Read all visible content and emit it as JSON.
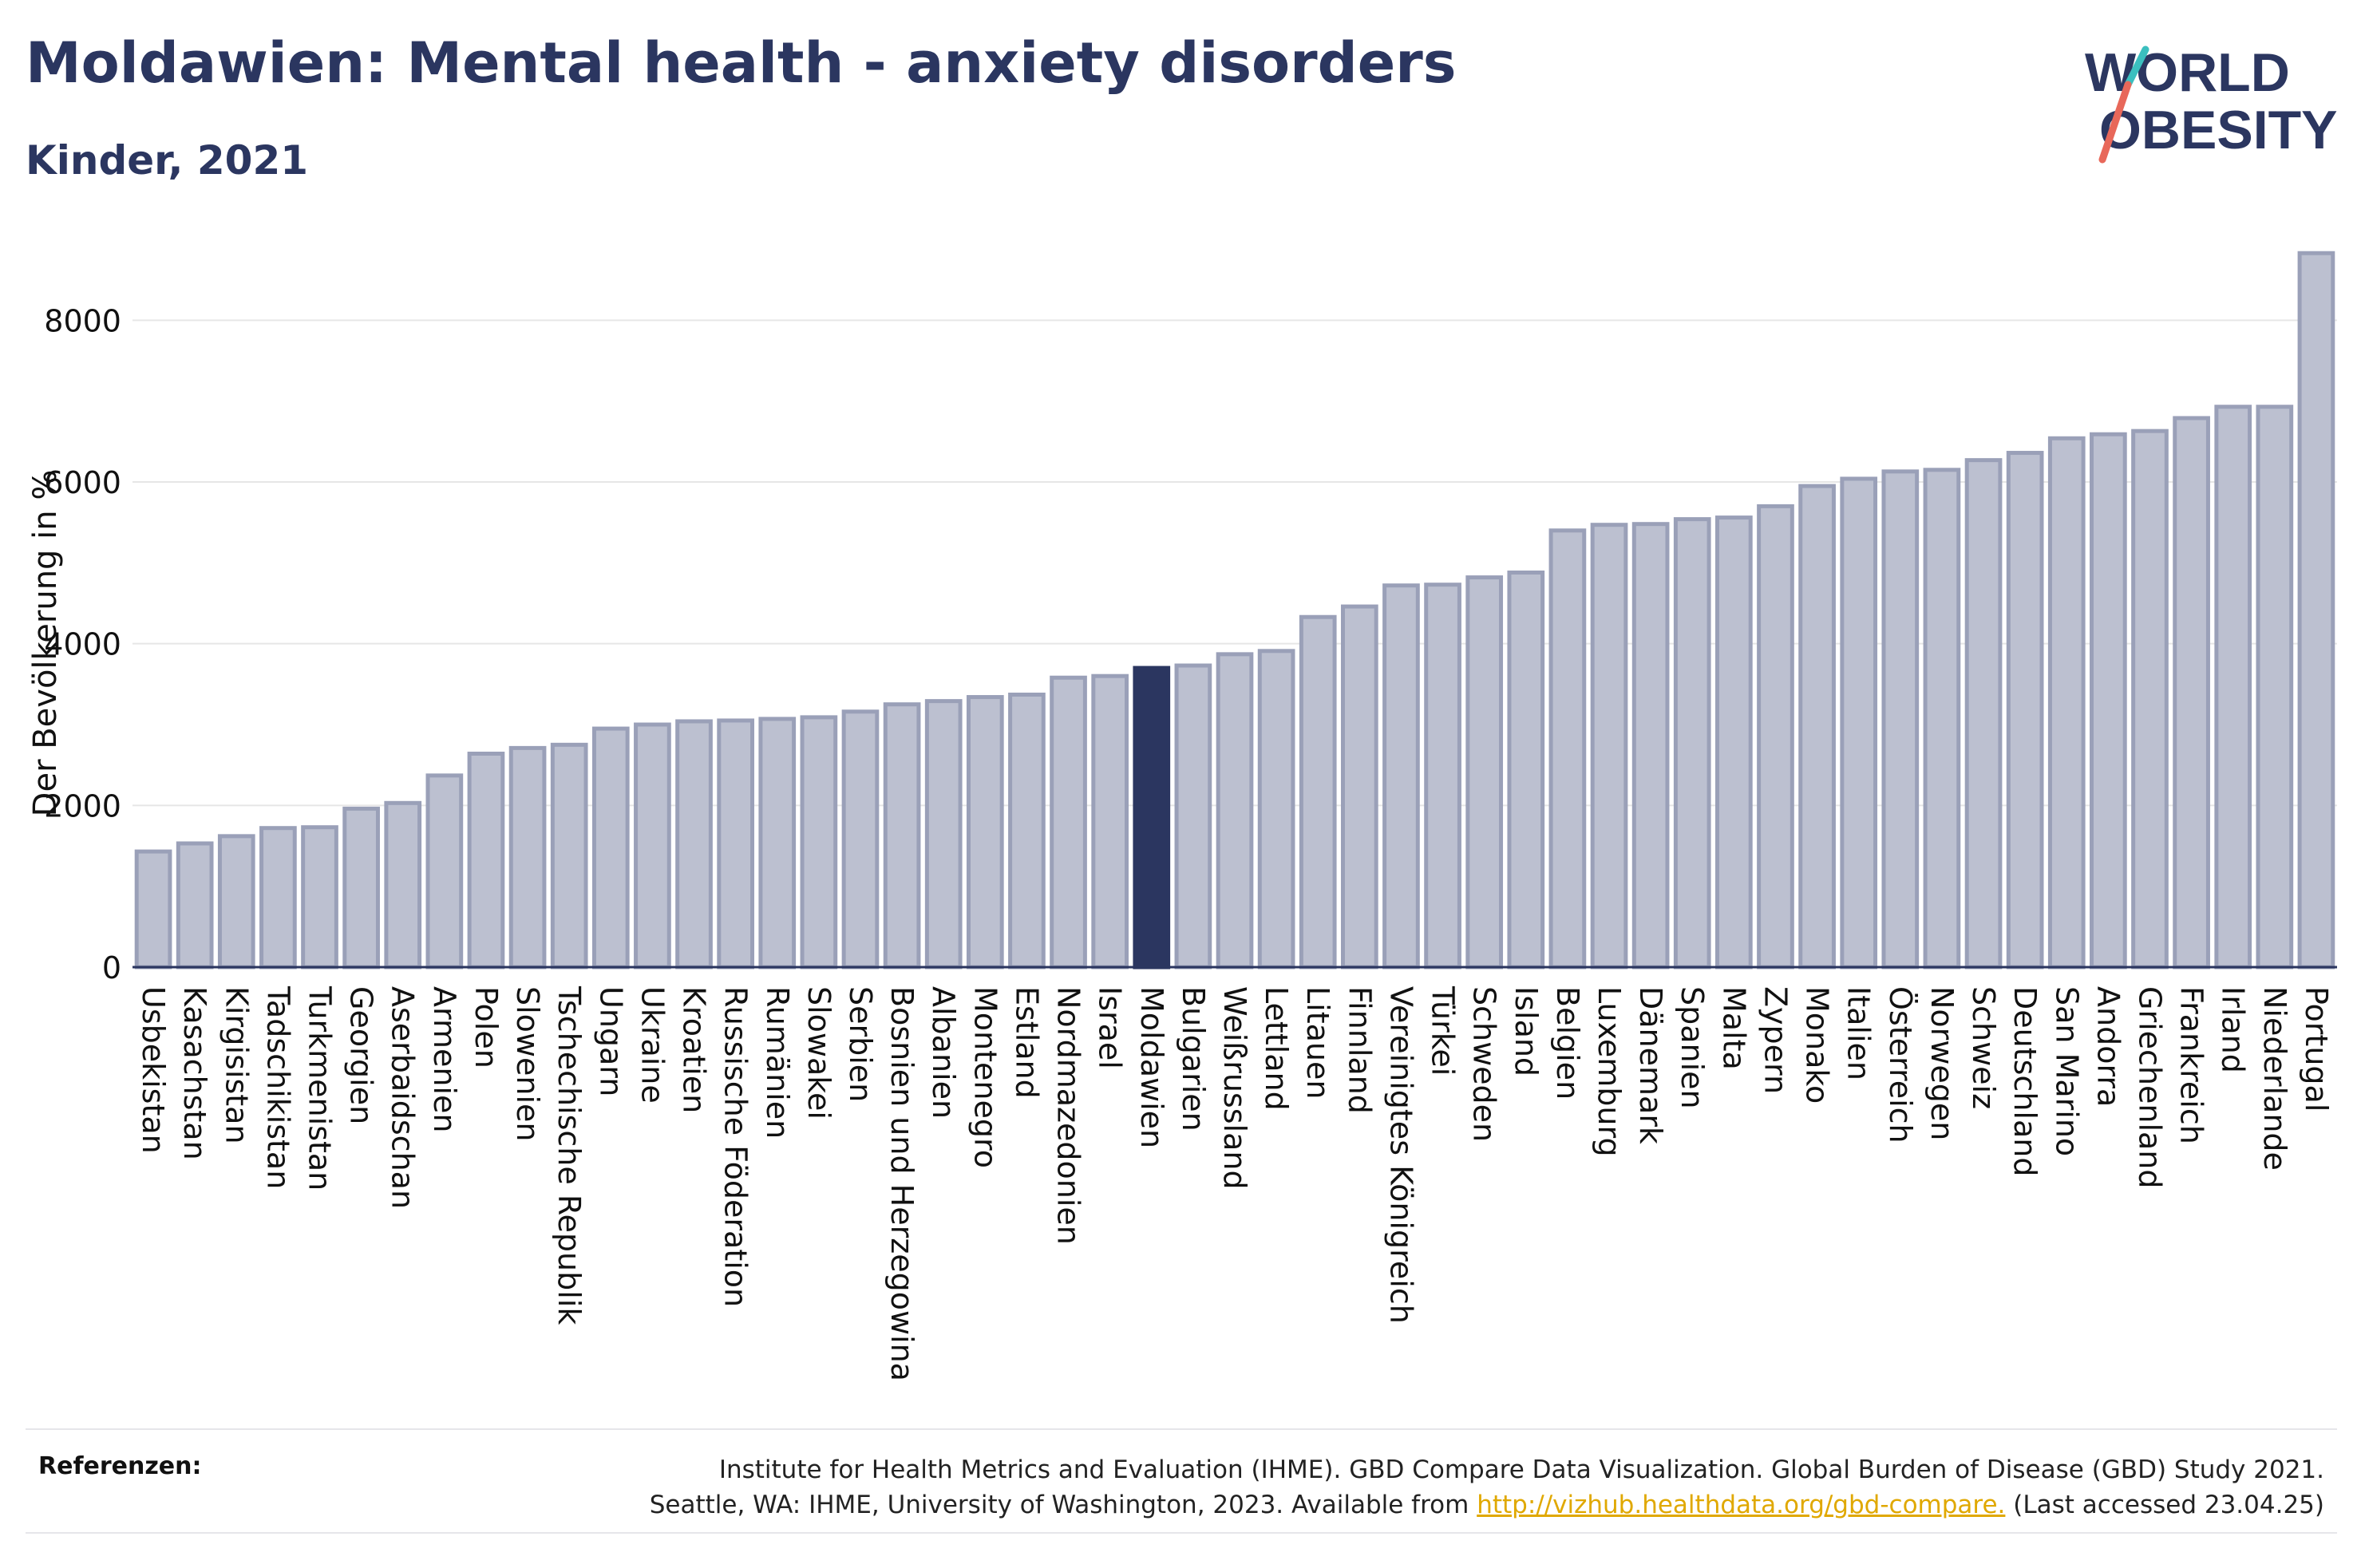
{
  "header": {
    "title": "Moldawien: Mental health - anxiety disorders",
    "subtitle": "Kinder, 2021"
  },
  "logo": {
    "line1": "WORLD",
    "line2": "OBESITY"
  },
  "colors": {
    "bar_fill": "#bcc0d0",
    "bar_stroke": "#9aa0b8",
    "highlight": "#2b3660",
    "title": "#2b3660",
    "logo_teal": "#3bbfbf",
    "logo_coral": "#e8685a",
    "link": "#e0a800"
  },
  "chart_data": {
    "type": "bar",
    "title": "Moldawien: Mental health - anxiety disorders",
    "subtitle": "Kinder, 2021",
    "ylabel": "Der Bevölkerung in %",
    "xlabel": "",
    "ylim": [
      0,
      9000
    ],
    "yticks": [
      0,
      2000,
      4000,
      6000,
      8000
    ],
    "grid": true,
    "highlight": "Moldawien",
    "categories": [
      "Usbekistan",
      "Kasachstan",
      "Kirgisistan",
      "Tadschikistan",
      "Turkmenistan",
      "Georgien",
      "Aserbaidschan",
      "Armenien",
      "Polen",
      "Slowenien",
      "Tschechische Republik",
      "Ungarn",
      "Ukraine",
      "Kroatien",
      "Russische Föderation",
      "Rumänien",
      "Slowakei",
      "Serbien",
      "Bosnien und Herzegowina",
      "Albanien",
      "Montenegro",
      "Estland",
      "Nordmazedonien",
      "Israel",
      "Moldawien",
      "Bulgarien",
      "Weißrussland",
      "Lettland",
      "Litauen",
      "Finnland",
      "Vereinigtes Königreich",
      "Türkei",
      "Schweden",
      "Island",
      "Belgien",
      "Luxemburg",
      "Dänemark",
      "Spanien",
      "Malta",
      "Zypern",
      "Monako",
      "Italien",
      "Österreich",
      "Norwegen",
      "Schweiz",
      "Deutschland",
      "San Marino",
      "Andorra",
      "Griechenland",
      "Frankreich",
      "Irland",
      "Niederlande",
      "Portugal"
    ],
    "values": [
      1430,
      1530,
      1620,
      1720,
      1730,
      1960,
      2030,
      2370,
      2640,
      2710,
      2750,
      2950,
      3000,
      3040,
      3050,
      3070,
      3090,
      3160,
      3250,
      3290,
      3340,
      3370,
      3580,
      3600,
      3700,
      3730,
      3870,
      3910,
      4330,
      4460,
      4720,
      4730,
      4820,
      4880,
      5400,
      5470,
      5480,
      5540,
      5560,
      5700,
      5950,
      6040,
      6130,
      6150,
      6270,
      6360,
      6540,
      6590,
      6630,
      6790,
      6930,
      6930,
      8830
    ]
  },
  "references": {
    "label": "Referenzen:",
    "line1": "Institute for Health Metrics and Evaluation (IHME). GBD Compare Data Visualization. Global Burden of Disease (GBD) Study 2021.",
    "line2_prefix": "Seattle, WA: IHME, University of Washington, 2023. Available from ",
    "link": "http://vizhub.healthdata.org/gbd-compare.",
    "line2_suffix": " (Last accessed 23.04.25)"
  }
}
